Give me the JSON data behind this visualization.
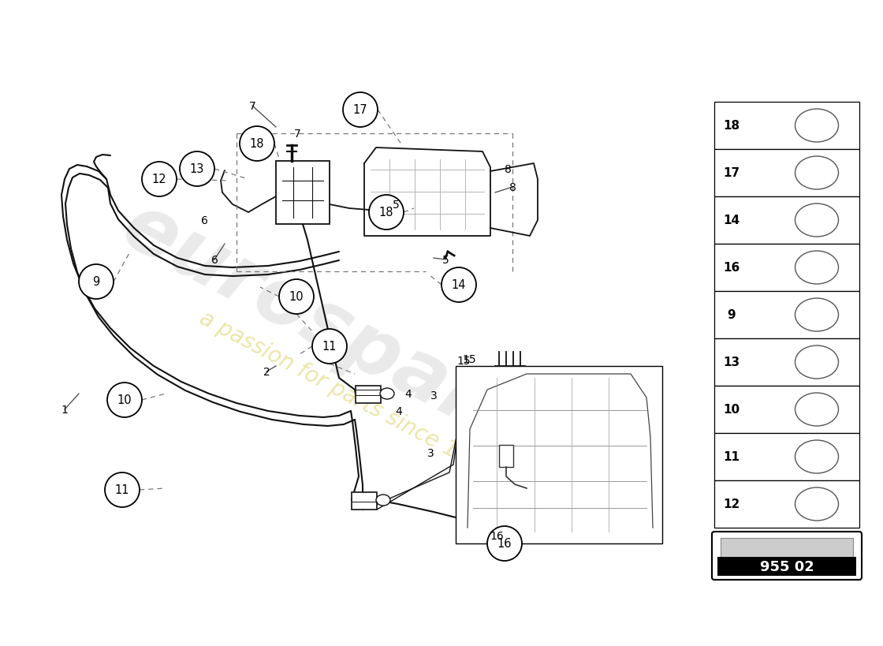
{
  "bg_color": "#ffffff",
  "line_color": "#111111",
  "part_number": "955 02",
  "right_panel_nums": [
    "18",
    "17",
    "14",
    "16",
    "9",
    "13",
    "10",
    "11",
    "12"
  ],
  "watermark_text1": "eurospares",
  "watermark_text2": "a passion for parts since 1985"
}
